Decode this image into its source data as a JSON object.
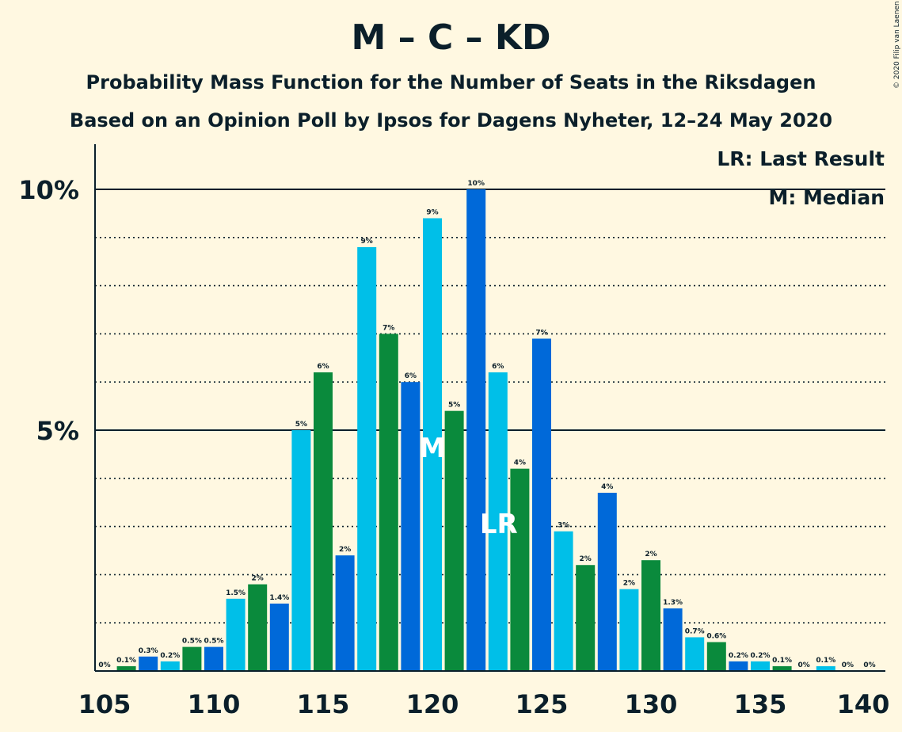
{
  "title": "M – C – KD",
  "subtitle1": "Probability Mass Function for the Number of Seats in the Riksdagen",
  "subtitle2": "Based on an Opinion Poll by Ipsos for Dagens Nyheter, 12–24 May 2020",
  "copyright": "© 2020 Filip van Laenen",
  "legend": {
    "last_result": "LR: Last Result",
    "median": "M: Median"
  },
  "colors": {
    "background": "#FFF8E1",
    "light_blue": "#00BFE8",
    "green": "#0A8A3C",
    "blue": "#0069D9",
    "text": "#0B1F2A"
  },
  "chart_data": {
    "type": "bar",
    "x": [
      105,
      106,
      107,
      108,
      109,
      110,
      111,
      112,
      113,
      114,
      115,
      116,
      117,
      118,
      119,
      120,
      121,
      122,
      123,
      124,
      125,
      126,
      127,
      128,
      129,
      130,
      131,
      132,
      133,
      134,
      135,
      136,
      137,
      138,
      139,
      140
    ],
    "values": [
      0,
      0.1,
      0.3,
      0.2,
      0.5,
      0.5,
      1.5,
      1.8,
      1.4,
      5.0,
      6.2,
      2.4,
      8.8,
      7.0,
      6.0,
      9.4,
      5.4,
      10.0,
      6.2,
      4.2,
      6.9,
      2.9,
      2.2,
      3.7,
      1.7,
      2.3,
      1.3,
      0.7,
      0.6,
      0.2,
      0.2,
      0.1,
      0,
      0.1,
      0,
      0
    ],
    "data_labels": [
      "0%",
      "0.1%",
      "0.3%",
      "0.2%",
      "0.5%",
      "0.5%",
      "1.5%",
      "2%",
      "1.4%",
      "5%",
      "6%",
      "2%",
      "9%",
      "7%",
      "6%",
      "9%",
      "5%",
      "10%",
      "6%",
      "4%",
      "7%",
      "3%",
      "2%",
      "4%",
      "2%",
      "2%",
      "1.3%",
      "0.7%",
      "0.6%",
      "0.2%",
      "0.2%",
      "0.1%",
      "0%",
      "0.1%",
      "0%",
      "0%"
    ],
    "bar_colors": [
      "light_blue",
      "green",
      "blue",
      "light_blue",
      "green",
      "blue",
      "light_blue",
      "green",
      "blue",
      "light_blue",
      "green",
      "blue",
      "light_blue",
      "green",
      "blue",
      "light_blue",
      "green",
      "blue",
      "light_blue",
      "green",
      "blue",
      "light_blue",
      "green",
      "blue",
      "light_blue",
      "green",
      "blue",
      "light_blue",
      "green",
      "blue",
      "light_blue",
      "green",
      "blue",
      "light_blue",
      "green",
      "blue"
    ],
    "x_ticks": [
      105,
      110,
      115,
      120,
      125,
      130,
      135,
      140
    ],
    "x_tick_labels": [
      "105",
      "110",
      "115",
      "120",
      "125",
      "130",
      "135",
      "140"
    ],
    "y_ticks": [
      5,
      10
    ],
    "y_tick_labels": [
      "5%",
      "10%"
    ],
    "ylim": [
      0,
      11
    ],
    "grid": "dotted each 1%, solid at 5% and 10%",
    "legend_position": "top-right",
    "markers": [
      {
        "x": 120,
        "label": "M"
      },
      {
        "x": 123,
        "label": "LR"
      }
    ]
  }
}
